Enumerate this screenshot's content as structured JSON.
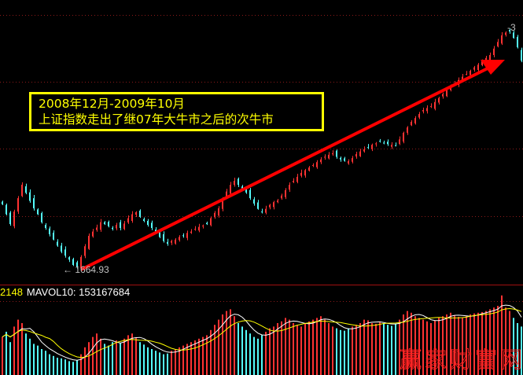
{
  "chart_data": {
    "type": "candlestick",
    "title": "",
    "annotation": {
      "line1": "2008年12月-2009年10月",
      "line2": "上证指数走出了继07年大牛市之后的次牛市"
    },
    "low_marker": "1664.93",
    "high_marker": "3",
    "ylim": [
      1664.93,
      3478
    ],
    "close": [
      2154,
      2080,
      2006,
      2100,
      2200,
      2301,
      2240,
      2180,
      2124,
      2080,
      2020,
      1977,
      1930,
      1890,
      1845,
      1800,
      1770,
      1740,
      1700,
      1683,
      1760,
      1840,
      1918,
      1950,
      1980,
      2020,
      2006,
      1990,
      1970,
      2000,
      1977,
      2010,
      2050,
      2080,
      2095,
      2060,
      2030,
      2000,
      1977,
      1940,
      1910,
      1880,
      1859,
      1880,
      1890,
      1910,
      1918,
      1940,
      1950,
      1970,
      1985,
      1995,
      2006,
      2050,
      2090,
      2124,
      2190,
      2250,
      2300,
      2330,
      2300,
      2270,
      2242,
      2200,
      2160,
      2120,
      2095,
      2120,
      2150,
      2170,
      2183,
      2220,
      2260,
      2300,
      2330,
      2360,
      2390,
      2410,
      2430,
      2448,
      2470,
      2490,
      2510,
      2525,
      2536,
      2510,
      2490,
      2480,
      2477,
      2500,
      2530,
      2550,
      2566,
      2580,
      2600,
      2610,
      2624,
      2615,
      2605,
      2600,
      2595,
      2640,
      2690,
      2730,
      2772,
      2800,
      2830,
      2860,
      2875,
      2889,
      2920,
      2950,
      2980,
      3010,
      3036,
      3060,
      3085,
      3110,
      3130,
      3154,
      3180,
      3200,
      3225,
      3250,
      3272,
      3320,
      3370,
      3419,
      3440,
      3448,
      3400,
      3330,
      3230
    ],
    "volume_panel": {
      "vol_label": "2148",
      "mavol_label": "MAVOL10: 153167684",
      "volume_millions": [
        110,
        125,
        95,
        140,
        160,
        150,
        120,
        105,
        90,
        85,
        75,
        70,
        60,
        55,
        50,
        48,
        45,
        40,
        38,
        42,
        60,
        80,
        95,
        110,
        120,
        105,
        90,
        85,
        95,
        100,
        92,
        105,
        115,
        120,
        108,
        95,
        88,
        80,
        75,
        70,
        65,
        60,
        62,
        70,
        75,
        80,
        85,
        90,
        95,
        100,
        105,
        110,
        115,
        130,
        145,
        160,
        175,
        185,
        190,
        170,
        150,
        140,
        130,
        120,
        110,
        105,
        115,
        125,
        135,
        140,
        150,
        155,
        165,
        160,
        150,
        145,
        140,
        150,
        155,
        160,
        165,
        170,
        160,
        150,
        140,
        135,
        130,
        128,
        135,
        140,
        145,
        150,
        160,
        158,
        150,
        148,
        152,
        150,
        145,
        142,
        148,
        160,
        175,
        185,
        180,
        170,
        165,
        160,
        155,
        150,
        158,
        165,
        170,
        175,
        180,
        172,
        168,
        165,
        170,
        175,
        178,
        180,
        182,
        185,
        190,
        195,
        200,
        230,
        195,
        185,
        165,
        150,
        140
      ]
    },
    "colors": {
      "up": "#ff3232",
      "down": "#54fcfc",
      "grid": "#8b1a1a",
      "arrow": "#ff0000",
      "ma5": "#ffffff",
      "ma10": "#ffff00"
    }
  },
  "watermark": "赢家财富网"
}
